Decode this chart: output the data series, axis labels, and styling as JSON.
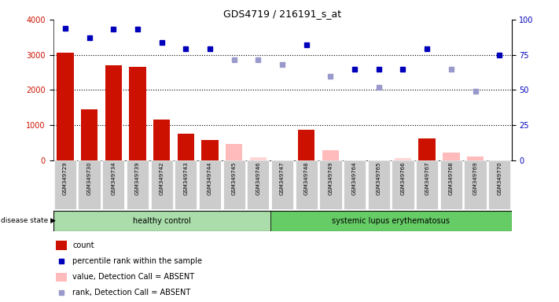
{
  "title": "GDS4719 / 216191_s_at",
  "samples": [
    "GSM349729",
    "GSM349730",
    "GSM349734",
    "GSM349739",
    "GSM349742",
    "GSM349743",
    "GSM349744",
    "GSM349745",
    "GSM349746",
    "GSM349747",
    "GSM349748",
    "GSM349749",
    "GSM349764",
    "GSM349765",
    "GSM349766",
    "GSM349767",
    "GSM349768",
    "GSM349769",
    "GSM349770"
  ],
  "counts": [
    3050,
    1450,
    2700,
    2650,
    1150,
    760,
    580,
    null,
    null,
    null,
    860,
    null,
    null,
    null,
    null,
    620,
    null,
    null,
    null
  ],
  "counts_absent": [
    null,
    null,
    null,
    null,
    null,
    null,
    null,
    450,
    null,
    null,
    null,
    270,
    null,
    null,
    null,
    null,
    220,
    100,
    null
  ],
  "counts_absent2": [
    null,
    null,
    null,
    null,
    null,
    null,
    null,
    null,
    70,
    null,
    null,
    null,
    null,
    null,
    60,
    null,
    null,
    null,
    null
  ],
  "percentile": [
    3750,
    3480,
    3720,
    3720,
    3360,
    3180,
    3160,
    null,
    null,
    null,
    3280,
    null,
    2580,
    2580,
    2580,
    3160,
    null,
    null,
    3000
  ],
  "percentile_absent": [
    null,
    null,
    null,
    null,
    null,
    null,
    null,
    null,
    2860,
    2720,
    null,
    null,
    null,
    null,
    null,
    null,
    2580,
    1960,
    null
  ],
  "percentile_absent2": [
    null,
    null,
    null,
    null,
    null,
    null,
    null,
    2850,
    null,
    null,
    null,
    2380,
    null,
    2080,
    null,
    null,
    null,
    null,
    null
  ],
  "healthy_range": [
    0,
    8
  ],
  "lupus_range": [
    9,
    18
  ],
  "ylim_left": [
    0,
    4000
  ],
  "ylim_right": [
    0,
    100
  ],
  "yticks_left": [
    0,
    1000,
    2000,
    3000,
    4000
  ],
  "yticks_right": [
    0,
    25,
    50,
    75,
    100
  ],
  "bar_color": "#cc1100",
  "bar_absent_color": "#ffbbbb",
  "dot_color": "#0000bb",
  "dot_absent_color": "#9999cc",
  "tick_bg": "#cccccc",
  "healthy_color": "#aaddaa",
  "lupus_color": "#66cc66",
  "legend_items": [
    {
      "label": "count",
      "color": "#cc1100",
      "type": "bar"
    },
    {
      "label": "percentile rank within the sample",
      "color": "#0000bb",
      "type": "dot"
    },
    {
      "label": "value, Detection Call = ABSENT",
      "color": "#ffbbbb",
      "type": "bar"
    },
    {
      "label": "rank, Detection Call = ABSENT",
      "color": "#9999cc",
      "type": "dot"
    }
  ]
}
